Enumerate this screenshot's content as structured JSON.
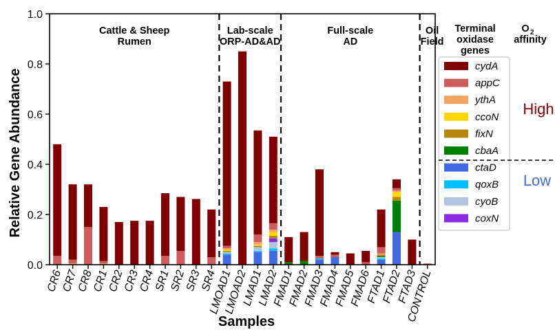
{
  "chart_data": {
    "type": "bar",
    "stacked": true,
    "xlabel": "Samples",
    "ylabel": "Relative Gene Abundance",
    "ylim": [
      0,
      1.0
    ],
    "yticks": [
      "0.0",
      "0.2",
      "0.4",
      "0.6",
      "0.8",
      "1.0"
    ],
    "grid": false,
    "categories": [
      "CR6",
      "CR7",
      "CR8",
      "CR1",
      "CR2",
      "CR3",
      "CR4",
      "SR1",
      "SR2",
      "SR3",
      "SR4",
      "LMOAD1",
      "LMOAD2",
      "LMAD1",
      "LMAD2",
      "FMAD1",
      "FMAD2",
      "FMAD3",
      "FMAD4",
      "FMAD5",
      "FMAD6",
      "FTAD1",
      "FTAD2",
      "FTAD3",
      "CONTROL"
    ],
    "groups": [
      {
        "label": [
          "Cattle & Sheep",
          "Rumen"
        ],
        "start": 0,
        "end": 10
      },
      {
        "label": [
          "Lab-scale",
          "ORP-AD&AD"
        ],
        "start": 11,
        "end": 14
      },
      {
        "label": [
          "Full-scale",
          "AD"
        ],
        "start": 15,
        "end": 23
      },
      {
        "label": [
          "Oil",
          "Field"
        ],
        "start": 24,
        "end": 24
      }
    ],
    "series": [
      {
        "name": "ctaD",
        "color": "#4169E1",
        "values": [
          0,
          0,
          0,
          0,
          0,
          0,
          0,
          0,
          0,
          0,
          0,
          0.04,
          0,
          0.05,
          0.055,
          0,
          0,
          0.02,
          0.03,
          0,
          0,
          0.02,
          0.13,
          0,
          0
        ]
      },
      {
        "name": "qoxB",
        "color": "#00BFFF",
        "values": [
          0,
          0,
          0,
          0,
          0,
          0,
          0,
          0,
          0,
          0,
          0,
          0.005,
          0,
          0.005,
          0.01,
          0,
          0,
          0.005,
          0,
          0,
          0,
          0.005,
          0,
          0,
          0
        ]
      },
      {
        "name": "cyoB",
        "color": "#B0C4DE",
        "values": [
          0,
          0,
          0,
          0,
          0,
          0,
          0,
          0,
          0,
          0,
          0,
          0.005,
          0,
          0.015,
          0.025,
          0,
          0,
          0,
          0,
          0,
          0,
          0.005,
          0,
          0,
          0
        ]
      },
      {
        "name": "coxN",
        "color": "#8A2BE2",
        "values": [
          0,
          0,
          0,
          0,
          0,
          0,
          0,
          0,
          0,
          0,
          0,
          0,
          0,
          0,
          0.015,
          0,
          0,
          0,
          0,
          0,
          0,
          0,
          0,
          0,
          0
        ]
      },
      {
        "name": "cbaA",
        "color": "#008000",
        "values": [
          0,
          0,
          0,
          0,
          0,
          0,
          0,
          0,
          0,
          0,
          0,
          0,
          0,
          0,
          0,
          0.01,
          0.015,
          0,
          0,
          0,
          0,
          0.005,
          0.125,
          0,
          0
        ]
      },
      {
        "name": "fixN",
        "color": "#B8860B",
        "values": [
          0,
          0,
          0,
          0,
          0,
          0,
          0,
          0,
          0,
          0,
          0,
          0.005,
          0,
          0.005,
          0.01,
          0,
          0,
          0,
          0,
          0,
          0,
          0.005,
          0.015,
          0,
          0
        ]
      },
      {
        "name": "cco N",
        "legend": "ccoN",
        "color": "#FFD700",
        "values": [
          0,
          0,
          0,
          0,
          0,
          0,
          0,
          0,
          0,
          0,
          0,
          0.005,
          0,
          0.005,
          0.015,
          0,
          0,
          0,
          0,
          0,
          0,
          0,
          0.02,
          0,
          0
        ]
      },
      {
        "name": "ythA",
        "color": "#F4A460",
        "values": [
          0,
          0.005,
          0,
          0.005,
          0,
          0,
          0,
          0,
          0,
          0,
          0,
          0.005,
          0,
          0.01,
          0.01,
          0,
          0,
          0,
          0,
          0,
          0,
          0.005,
          0.005,
          0,
          0
        ]
      },
      {
        "name": "appC",
        "color": "#CD5C5C",
        "values": [
          0.035,
          0.015,
          0.15,
          0.01,
          0,
          0,
          0,
          0.035,
          0.055,
          0,
          0.03,
          0.01,
          0,
          0.03,
          0.025,
          0,
          0,
          0.01,
          0.01,
          0,
          0.01,
          0.025,
          0.01,
          0,
          0.005
        ]
      },
      {
        "name": "cydA",
        "color": "#800000",
        "values": [
          0.445,
          0.3,
          0.17,
          0.215,
          0.17,
          0.175,
          0.175,
          0.25,
          0.215,
          0.262,
          0.19,
          0.655,
          0.85,
          0.415,
          0.345,
          0.1,
          0.115,
          0.345,
          0.01,
          0.045,
          0.045,
          0.15,
          0.035,
          0.1,
          0
        ]
      }
    ]
  },
  "legend": {
    "title": [
      "Terminal",
      "oxidase",
      "genes"
    ],
    "affinity_title": [
      "O",
      "2",
      "affinity"
    ],
    "high_label": "High",
    "low_label": "Low",
    "entries": [
      {
        "name": "cydA",
        "color": "#800000"
      },
      {
        "name": "appC",
        "color": "#CD5C5C"
      },
      {
        "name": "ythA",
        "color": "#F4A460"
      },
      {
        "name": "ccoN",
        "color": "#FFD700"
      },
      {
        "name": "fixN",
        "color": "#B8860B"
      },
      {
        "name": "cbaA",
        "color": "#008000"
      },
      {
        "name": "ctaD",
        "color": "#4169E1"
      },
      {
        "name": "qoxB",
        "color": "#00BFFF"
      },
      {
        "name": "cyoB",
        "color": "#B0C4DE"
      },
      {
        "name": "coxN",
        "color": "#8A2BE2"
      }
    ],
    "high_color": "#8B0000",
    "low_color": "#4169E1"
  }
}
